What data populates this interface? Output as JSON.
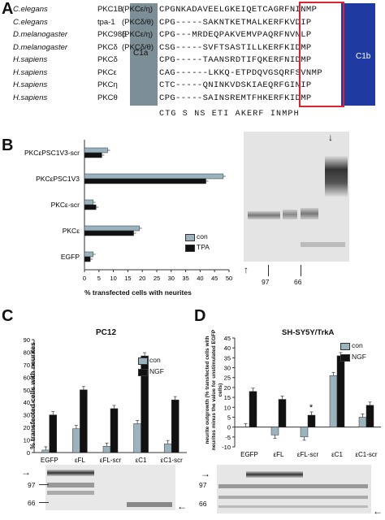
{
  "panelA": {
    "letter": "A",
    "c1a_label": "C1a",
    "c1b_label": "C1b",
    "rows": [
      {
        "species": "C.elegans",
        "gene": "PKC1B",
        "iso": "(PKCε/η)",
        "seq": "CPGNKADAVEELGKEIQETCAGRFNINMP"
      },
      {
        "species": "C.elegans",
        "gene": "tpa-1",
        "iso": "(PKCδ/θ)",
        "seq": "CPG-----SAKNTKETMALKERFKVDIP"
      },
      {
        "species": "D.melanogaster",
        "gene": "PKC98E",
        "iso": "(PKCε/η)",
        "seq": "CPG---MRDEQPAKVEMVPAQRFNVNLP"
      },
      {
        "species": "D.melanogaster",
        "gene": "PKCδ",
        "iso": "(PKCδ/θ)",
        "seq": "CSG-----SVFTSASTILLKERFKIDMP"
      },
      {
        "species": "H.sapiens",
        "gene": "PKCδ",
        "iso": "",
        "seq": "CPG-----TAANSRDTIFQKERFNIDMP"
      },
      {
        "species": "H.sapiens",
        "gene": "PKCε",
        "iso": "",
        "seq": "CAG------LKKQ-ETPDQVGSQRFSVNMP"
      },
      {
        "species": "H.sapiens",
        "gene": "PKCη",
        "iso": "",
        "seq": "CTC-----QNINKVDSKIAEQRFGINIP"
      },
      {
        "species": "H.sapiens",
        "gene": "PKCθ",
        "iso": "",
        "seq": "CPG-----SAINSREMTFHKERFKIDMP"
      }
    ],
    "consensus": "CTG        S  NS ETI   AKERF  INMPH"
  },
  "panelB": {
    "letter": "B",
    "chart_data": {
      "type": "bar",
      "orientation": "horizontal",
      "categories": [
        "PKCεPSC1V3-scr",
        "PKCεPSC1V3",
        "PKCε-scr",
        "PKCε",
        "EGFP"
      ],
      "series": [
        {
          "name": "con",
          "color": "#9ab3bd",
          "values": [
            8,
            48,
            3,
            19,
            3
          ]
        },
        {
          "name": "TPA",
          "color": "#111111",
          "values": [
            6,
            42,
            4,
            17,
            2
          ]
        }
      ],
      "xlabel": "% transfected cells with neurites",
      "xticks": [
        "0",
        "5",
        "10",
        "15",
        "20",
        "25",
        "30",
        "35",
        "40",
        "45",
        "50"
      ],
      "xlim": [
        0,
        50
      ]
    },
    "blot_markers": [
      "97",
      "66"
    ]
  },
  "panelC": {
    "letter": "C",
    "chart_data": {
      "type": "bar",
      "title": "PC12",
      "categories": [
        "EGFP",
        "εFL",
        "εFL-scr",
        "εC1",
        "εC1-scr"
      ],
      "series": [
        {
          "name": "con",
          "color": "#9ab3bd",
          "values": [
            2,
            19,
            5,
            23,
            7
          ]
        },
        {
          "name": "NGF",
          "color": "#111111",
          "values": [
            30,
            50,
            35,
            77,
            42
          ]
        }
      ],
      "ylabel": "% transfected cells with neurites",
      "yticks": [
        "0",
        "10",
        "20",
        "30",
        "40",
        "50",
        "60",
        "70",
        "80",
        "90"
      ],
      "ylim": [
        0,
        90
      ]
    },
    "blot_markers": [
      "97",
      "66"
    ]
  },
  "panelD": {
    "letter": "D",
    "chart_data": {
      "type": "bar",
      "title": "SH-SY5Y/TrkA",
      "categories": [
        "EGFP",
        "εFL",
        "εFL-scr",
        "εC1",
        "εC1-scr"
      ],
      "series": [
        {
          "name": "con",
          "color": "#9ab3bd",
          "values": [
            0,
            -4,
            -5,
            26,
            5
          ]
        },
        {
          "name": "NGF",
          "color": "#111111",
          "values": [
            18,
            14,
            6,
            36,
            11
          ]
        }
      ],
      "ylabel": "neurite outgrowth (% transfected cells with neurites minus the value for unstimulated EGFP cells)",
      "yticks": [
        "-10",
        "-5",
        "0",
        "5",
        "10",
        "15",
        "20",
        "25",
        "30",
        "35",
        "40",
        "45"
      ],
      "ylim": [
        -10,
        45
      ],
      "annotation": "*"
    },
    "blot_markers": [
      "97",
      "66"
    ]
  }
}
